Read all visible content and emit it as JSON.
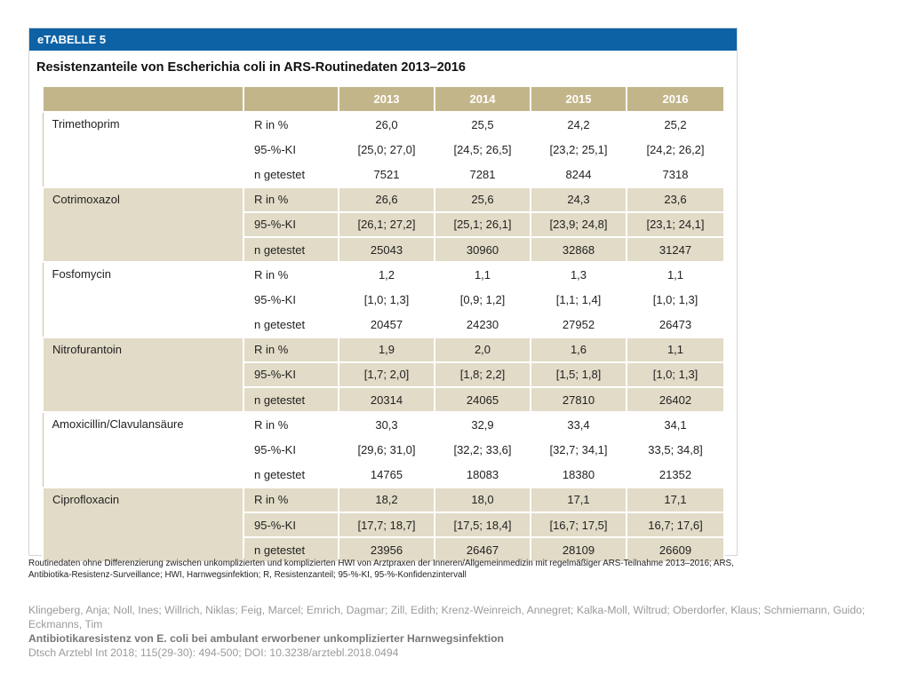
{
  "label": "eTABELLE 5",
  "title": "Resistenzanteile von Escherichia coli in ARS-Routinedaten 2013–2016",
  "years": [
    "2013",
    "2014",
    "2015",
    "2016"
  ],
  "groups": [
    {
      "drug": "Trimethoprim",
      "rows": [
        {
          "metric": "R in %",
          "values": [
            "26,0",
            "25,5",
            "24,2",
            "25,2"
          ]
        },
        {
          "metric": "95-%-KI",
          "values": [
            "[25,0; 27,0]",
            "[24,5; 26,5]",
            "[23,2; 25,1]",
            "[24,2; 26,2]"
          ]
        },
        {
          "metric": "n getestet",
          "values": [
            "7521",
            "7281",
            "8244",
            "7318"
          ]
        }
      ]
    },
    {
      "drug": "Cotrimoxazol",
      "rows": [
        {
          "metric": "R in %",
          "values": [
            "26,6",
            "25,6",
            "24,3",
            "23,6"
          ]
        },
        {
          "metric": "95-%-KI",
          "values": [
            "[26,1; 27,2]",
            "[25,1; 26,1]",
            "[23,9; 24,8]",
            "[23,1; 24,1]"
          ]
        },
        {
          "metric": "n getestet",
          "values": [
            "25043",
            "30960",
            "32868",
            "31247"
          ]
        }
      ]
    },
    {
      "drug": "Fosfomycin",
      "rows": [
        {
          "metric": "R in %",
          "values": [
            "1,2",
            "1,1",
            "1,3",
            "1,1"
          ]
        },
        {
          "metric": "95-%-KI",
          "values": [
            "[1,0; 1,3]",
            "[0,9; 1,2]",
            "[1,1; 1,4]",
            "[1,0; 1,3]"
          ]
        },
        {
          "metric": "n getestet",
          "values": [
            "20457",
            "24230",
            "27952",
            "26473"
          ]
        }
      ]
    },
    {
      "drug": "Nitrofurantoin",
      "rows": [
        {
          "metric": "R in %",
          "values": [
            "1,9",
            "2,0",
            "1,6",
            "1,1"
          ]
        },
        {
          "metric": "95-%-KI",
          "values": [
            "[1,7; 2,0]",
            "[1,8; 2,2]",
            "[1,5; 1,8]",
            "[1,0; 1,3]"
          ]
        },
        {
          "metric": "n getestet",
          "values": [
            "20314",
            "24065",
            "27810",
            "26402"
          ]
        }
      ]
    },
    {
      "drug": "Amoxicillin/Clavulansäure",
      "rows": [
        {
          "metric": "R in %",
          "values": [
            "30,3",
            "32,9",
            "33,4",
            "34,1"
          ]
        },
        {
          "metric": "95-%-KI",
          "values": [
            "[29,6; 31,0]",
            "[32,2; 33,6]",
            "[32,7; 34,1]",
            "33,5; 34,8]"
          ]
        },
        {
          "metric": "n getestet",
          "values": [
            "14765",
            "18083",
            "18380",
            "21352"
          ]
        }
      ]
    },
    {
      "drug": "Ciprofloxacin",
      "rows": [
        {
          "metric": "R in %",
          "values": [
            "18,2",
            "18,0",
            "17,1",
            "17,1"
          ]
        },
        {
          "metric": "95-%-KI",
          "values": [
            "[17,7; 18,7]",
            "[17,5; 18,4]",
            "[16,7; 17,5]",
            "16,7; 17,6]"
          ]
        },
        {
          "metric": "n getestet",
          "values": [
            "23956",
            "26467",
            "28109",
            "26609"
          ]
        }
      ]
    }
  ],
  "footnote": "Routinedaten ohne Differenzierung zwischen unkomplizierten und komplizierten HWI von Arztpraxen der Inneren/Allgemeinmedizin mit regelmäßiger ARS-Teilnahme 2013–2016; ARS, Antibiotika-Resistenz-Surveillance; HWI, Harnwegsinfektion; R, Resistenzanteil; 95-%-KI, 95-%-Konfidenzintervall",
  "citation": {
    "authors": "Klingeberg, Anja; Noll, Ines; Willrich, Niklas; Feig, Marcel; Emrich, Dagmar; Zill, Edith; Krenz-Weinreich, Annegret; Kalka-Moll, Wiltrud; Oberdorfer, Klaus; Schmiemann, Guido; Eckmanns, Tim",
    "article_title": "Antibiotikaresistenz von E. coli bei ambulant erworbener unkomplizierter Harnwegsinfektion",
    "journal": "Dtsch Arztebl Int 2018; 115(29-30): 494-500; DOI: 10.3238/arztebl.2018.0494"
  }
}
